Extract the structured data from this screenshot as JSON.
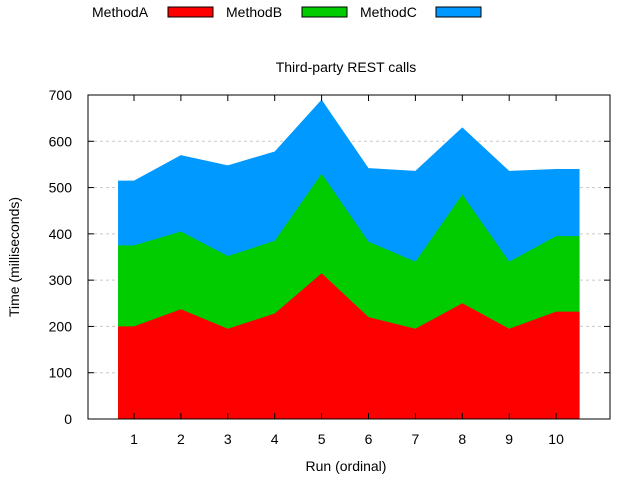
{
  "chart_data": {
    "type": "area",
    "stacked": true,
    "title": "Third-party REST calls",
    "xlabel": "Run (ordinal)",
    "ylabel": "Time (milliseconds)",
    "categories": [
      "1",
      "2",
      "3",
      "4",
      "5",
      "6",
      "7",
      "8",
      "9",
      "10"
    ],
    "x": [
      1,
      2,
      3,
      4,
      5,
      6,
      7,
      8,
      9,
      10
    ],
    "xlim": [
      0,
      11
    ],
    "ylim": [
      0,
      700
    ],
    "yticks": [
      0,
      100,
      200,
      300,
      400,
      500,
      600,
      700
    ],
    "grid": "horizontal dashed",
    "legend": "top-left, horizontal, outside plot",
    "series": [
      {
        "name": "MethodA",
        "color": "#ff0000",
        "values": [
          200,
          237,
          195,
          228,
          315,
          220,
          195,
          250,
          195,
          232
        ]
      },
      {
        "name": "MethodB",
        "color": "#00cc00",
        "values": [
          175,
          168,
          157,
          157,
          215,
          163,
          145,
          235,
          145,
          163
        ]
      },
      {
        "name": "MethodC",
        "color": "#0099ff",
        "values": [
          140,
          165,
          196,
          193,
          160,
          159,
          196,
          145,
          196,
          145
        ]
      }
    ]
  }
}
